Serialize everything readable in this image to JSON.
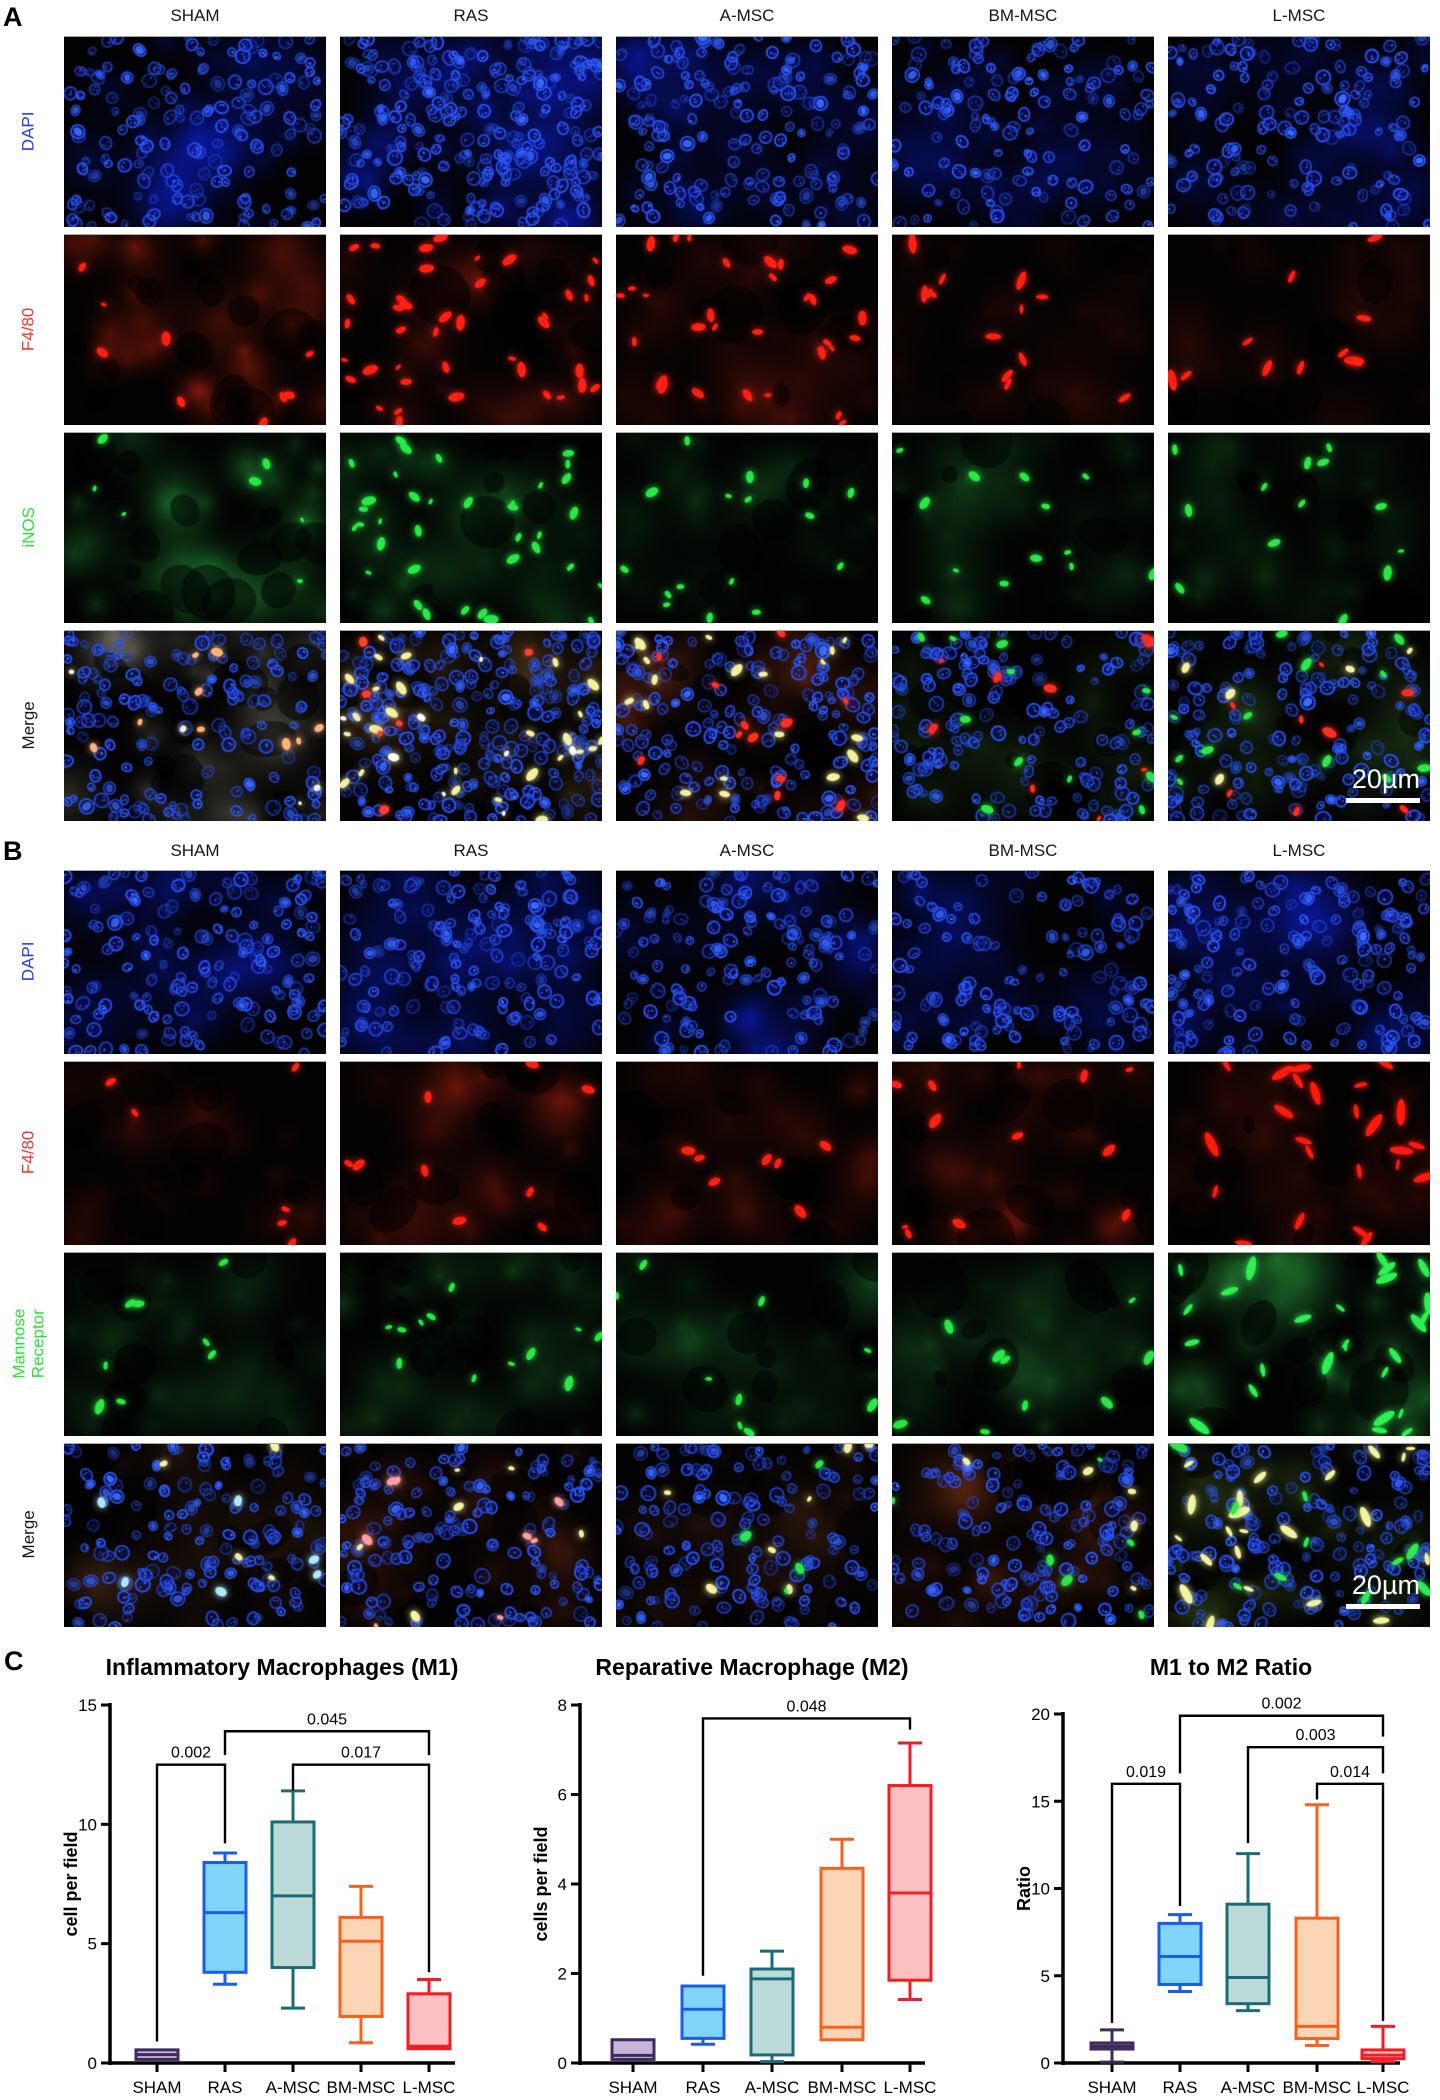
{
  "figure": {
    "panel_a": {
      "label": "A",
      "columns": [
        "SHAM",
        "RAS",
        "A-MSC",
        "BM-MSC",
        "L-MSC"
      ],
      "scale_bar": "20µm",
      "rows": [
        {
          "label": "DAPI",
          "color": "#2340ee",
          "tiles": [
            {
              "n": 150,
              "haze": 0.3
            },
            {
              "n": 235,
              "haze": 0.45
            },
            {
              "n": 160,
              "haze": 0.3
            },
            {
              "n": 125,
              "haze": 0.25
            },
            {
              "n": 140,
              "haze": 0.28
            }
          ]
        },
        {
          "label": "F4/80",
          "color": "#f5372b",
          "tiles": [
            {
              "tex": [
                "#8a1a0a",
                0.5
              ],
              "holes": 14,
              "spots": [
                [
                  "#ff2012",
                  9,
                  1.4
                ]
              ]
            },
            {
              "tex": [
                "#58100a",
                0.35
              ],
              "holes": 8,
              "spots": [
                [
                  "#ff2012",
                  40,
                  1.6
                ]
              ]
            },
            {
              "tex": [
                "#4a0d08",
                0.4
              ],
              "holes": 8,
              "spots": [
                [
                  "#ff2012",
                  32,
                  1.6
                ]
              ]
            },
            {
              "tex": [
                "#330a06",
                0.32
              ],
              "holes": 6,
              "spots": [
                [
                  "#ff2012",
                  13,
                  2.2
                ]
              ]
            },
            {
              "tex": [
                "#380b06",
                0.3
              ],
              "holes": 6,
              "spots": [
                [
                  "#ff2012",
                  11,
                  2.2
                ]
              ]
            }
          ]
        },
        {
          "label": "iNOS",
          "color": "#2ce23a",
          "tiles": [
            {
              "tex": [
                "#1d7a2e",
                0.45
              ],
              "holes": 14,
              "spots": [
                [
                  "#27e845",
                  7,
                  1.3
                ]
              ]
            },
            {
              "tex": [
                "#135c22",
                0.35
              ],
              "holes": 8,
              "spots": [
                [
                  "#27e845",
                  36,
                  1.5
                ]
              ]
            },
            {
              "tex": [
                "#0e3a16",
                0.3
              ],
              "holes": 6,
              "spots": [
                [
                  "#27e845",
                  16,
                  1.4
                ]
              ]
            },
            {
              "tex": [
                "#104218",
                0.32
              ],
              "holes": 6,
              "spots": [
                [
                  "#27e845",
                  13,
                  1.4
                ]
              ]
            },
            {
              "tex": [
                "#104218",
                0.3
              ],
              "holes": 6,
              "spots": [
                [
                  "#27e845",
                  13,
                  1.6
                ]
              ]
            }
          ]
        },
        {
          "label": "Merge",
          "color": "#151515",
          "tiles": [
            {
              "n": 145,
              "tex": [
                "#6b685c",
                0.4
              ],
              "holes": 12,
              "spots": [
                [
                  "#ffb37a",
                  9,
                  1.2
                ],
                [
                  "#f2f5da",
                  4,
                  1
                ]
              ]
            },
            {
              "n": 235,
              "tex": [
                "#4a3418",
                0.38
              ],
              "holes": 8,
              "spots": [
                [
                  "#f4f0a0",
                  26,
                  1.5
                ],
                [
                  "#fffff0",
                  8,
                  1.2
                ],
                [
                  "#ff4030",
                  6,
                  1
                ]
              ]
            },
            {
              "n": 170,
              "tex": [
                "#55200f",
                0.42
              ],
              "holes": 8,
              "spots": [
                [
                  "#f4f0a0",
                  20,
                  1.5
                ],
                [
                  "#ff3020",
                  12,
                  1.3
                ]
              ]
            },
            {
              "n": 150,
              "tex": [
                "#15280f",
                0.42
              ],
              "holes": 8,
              "spots": [
                [
                  "#2ae84a",
                  12,
                  1.4
                ],
                [
                  "#ff3020",
                  10,
                  1.4
                ]
              ]
            },
            {
              "n": 150,
              "tex": [
                "#182e13",
                0.45
              ],
              "holes": 8,
              "spots": [
                [
                  "#2ae84a",
                  12,
                  1.5
                ],
                [
                  "#ff3020",
                  8,
                  1.5
                ],
                [
                  "#f4f0a0",
                  5,
                  1.3
                ]
              ],
              "scalebar": true
            }
          ]
        }
      ]
    },
    "panel_b": {
      "label": "B",
      "columns": [
        "SHAM",
        "RAS",
        "A-MSC",
        "BM-MSC",
        "L-MSC"
      ],
      "scale_bar": "20µm",
      "rows": [
        {
          "label": "DAPI",
          "color": "#2340ee",
          "tiles": [
            {
              "n": 150,
              "haze": 0.3
            },
            {
              "n": 155,
              "haze": 0.32
            },
            {
              "n": 140,
              "haze": 0.28
            },
            {
              "n": 120,
              "haze": 0.25
            },
            {
              "n": 150,
              "haze": 0.3
            }
          ]
        },
        {
          "label": "F4/80",
          "color": "#f5372b",
          "tiles": [
            {
              "tex": [
                "#4a0d06",
                0.3
              ],
              "holes": 8,
              "spots": [
                [
                  "#ff2012",
                  6,
                  1.5
                ]
              ]
            },
            {
              "tex": [
                "#5a1008",
                0.42
              ],
              "holes": 10,
              "spots": [
                [
                  "#ff2012",
                  9,
                  1.5
                ]
              ]
            },
            {
              "tex": [
                "#500e07",
                0.38
              ],
              "holes": 8,
              "spots": [
                [
                  "#ff2012",
                  7,
                  1.5
                ]
              ]
            },
            {
              "tex": [
                "#5a1008",
                0.45
              ],
              "holes": 10,
              "spots": [
                [
                  "#ff2012",
                  12,
                  1.6
                ]
              ]
            },
            {
              "tex": [
                "#440c06",
                0.35
              ],
              "holes": 8,
              "spots": [
                [
                  "#ff1a0d",
                  24,
                  2.6
                ]
              ]
            }
          ]
        },
        {
          "label": "Mannose\nReceptor",
          "color": "#2ce23a",
          "tiles": [
            {
              "tex": [
                "#145020",
                0.32
              ],
              "holes": 8,
              "spots": [
                [
                  "#27e845",
                  8,
                  1.6
                ]
              ]
            },
            {
              "tex": [
                "#165522",
                0.38
              ],
              "holes": 8,
              "spots": [
                [
                  "#27e845",
                  12,
                  1.6
                ]
              ]
            },
            {
              "tex": [
                "#145020",
                0.34
              ],
              "holes": 8,
              "spots": [
                [
                  "#27e845",
                  9,
                  1.6
                ]
              ]
            },
            {
              "tex": [
                "#145020",
                0.36
              ],
              "holes": 8,
              "spots": [
                [
                  "#27e845",
                  9,
                  1.6
                ]
              ]
            },
            {
              "tex": [
                "#1c6b2a",
                0.5
              ],
              "holes": 10,
              "spots": [
                [
                  "#2df052",
                  26,
                  2.4
                ]
              ]
            }
          ]
        },
        {
          "label": "Merge",
          "color": "#151515",
          "tiles": [
            {
              "n": 135,
              "tex": [
                "#2a180e",
                0.4
              ],
              "holes": 8,
              "spots": [
                [
                  "#aee8ff",
                  6,
                  1.2
                ],
                [
                  "#f4f0a0",
                  4,
                  1.2
                ]
              ]
            },
            {
              "n": 140,
              "tex": [
                "#38150a",
                0.48
              ],
              "holes": 8,
              "spots": [
                [
                  "#ff9f9f",
                  8,
                  1.3
                ],
                [
                  "#f4f0a0",
                  6,
                  1.3
                ]
              ]
            },
            {
              "n": 135,
              "tex": [
                "#2a150c",
                0.42
              ],
              "holes": 8,
              "spots": [
                [
                  "#f4f0a0",
                  7,
                  1.3
                ],
                [
                  "#2ae84a",
                  4,
                  1.3
                ]
              ]
            },
            {
              "n": 135,
              "tex": [
                "#381709",
                0.5
              ],
              "holes": 8,
              "spots": [
                [
                  "#2ae84a",
                  6,
                  1.3
                ],
                [
                  "#f4f0a0",
                  5,
                  1.3
                ]
              ]
            },
            {
              "n": 145,
              "tex": [
                "#22300f",
                0.5
              ],
              "holes": 8,
              "spots": [
                [
                  "#f2f5a0",
                  22,
                  2.2
                ],
                [
                  "#31e852",
                  10,
                  2.0
                ]
              ],
              "scalebar": true
            }
          ]
        }
      ]
    },
    "panel_c": {
      "label": "C"
    }
  },
  "group_colors": {
    "SHAM": {
      "edge": "#3d2b5e",
      "fill": "#c7b6da"
    },
    "RAS": {
      "edge": "#1b5ce8",
      "fill": "#7fd4f8"
    },
    "A-MSC": {
      "edge": "#1a6b77",
      "fill": "#bcdbd8"
    },
    "BM-MSC": {
      "edge": "#f8611c",
      "fill": "#fbd5b5"
    },
    "L-MSC": {
      "edge": "#f01e24",
      "fill": "#fbc1c1"
    }
  },
  "chart_data": [
    {
      "type": "box",
      "title": "Inflammatory Macrophages (M1)",
      "ylabel": "cell per field",
      "ylim": [
        0,
        15
      ],
      "yticks": [
        0,
        5,
        10,
        15
      ],
      "categories": [
        "SHAM",
        "RAS",
        "A-MSC",
        "BM-MSC",
        "L-MSC"
      ],
      "boxes": [
        {
          "group": "SHAM",
          "min": 0.05,
          "q1": 0.15,
          "median": 0.35,
          "q3": 0.55,
          "max": 0.6
        },
        {
          "group": "RAS",
          "min": 3.3,
          "q1": 3.8,
          "median": 6.3,
          "q3": 8.4,
          "max": 8.8
        },
        {
          "group": "A-MSC",
          "min": 2.3,
          "q1": 4.0,
          "median": 7.0,
          "q3": 10.1,
          "max": 11.4
        },
        {
          "group": "BM-MSC",
          "min": 0.85,
          "q1": 1.95,
          "median": 5.1,
          "q3": 6.1,
          "max": 7.4
        },
        {
          "group": "L-MSC",
          "min": 0.6,
          "q1": 0.6,
          "median": 0.7,
          "q3": 2.9,
          "max": 3.5
        }
      ],
      "significance": [
        {
          "label": "0.002",
          "i1": 0,
          "i2": 1,
          "y": 12.5,
          "d1": 0.9,
          "d2": 9.2
        },
        {
          "label": "0.017",
          "i1": 2,
          "i2": 4,
          "y": 12.5,
          "d1": 11.4,
          "d2": 3.8
        },
        {
          "label": "0.045",
          "i1": 1,
          "i2": 4,
          "y": 13.9,
          "d1": 12.9,
          "d2": 12.9
        }
      ]
    },
    {
      "type": "box",
      "title": "Reparative Macrophage (M2)",
      "ylabel": "cells per field",
      "ylim": [
        0,
        8
      ],
      "yticks": [
        0,
        2,
        4,
        6,
        8
      ],
      "categories": [
        "SHAM",
        "RAS",
        "A-MSC",
        "BM-MSC",
        "L-MSC"
      ],
      "boxes": [
        {
          "group": "SHAM",
          "min": 0.03,
          "q1": 0.08,
          "median": 0.17,
          "q3": 0.52,
          "max": 0.63
        },
        {
          "group": "RAS",
          "min": 0.42,
          "q1": 0.55,
          "median": 1.2,
          "q3": 1.72,
          "max": 1.78
        },
        {
          "group": "A-MSC",
          "min": 0.03,
          "q1": 0.18,
          "median": 1.88,
          "q3": 2.1,
          "max": 2.5
        },
        {
          "group": "BM-MSC",
          "min": 0.42,
          "q1": 0.52,
          "median": 0.8,
          "q3": 4.35,
          "max": 5.0
        },
        {
          "group": "L-MSC",
          "min": 1.42,
          "q1": 1.85,
          "median": 3.8,
          "q3": 6.2,
          "max": 7.15
        }
      ],
      "significance": [
        {
          "label": "0.048",
          "i1": 1,
          "i2": 4,
          "y": 7.7,
          "d1": 1.95,
          "d2": 7.45
        }
      ]
    },
    {
      "type": "box",
      "title": "M1 to M2 Ratio",
      "ylabel": "Ratio",
      "ylim": [
        0,
        20
      ],
      "yticks": [
        0,
        5,
        10,
        15,
        20
      ],
      "categories": [
        "SHAM",
        "RAS",
        "A-MSC",
        "BM-MSC",
        "L-MSC"
      ],
      "boxes": [
        {
          "group": "SHAM",
          "min": 0.05,
          "q1": 0.8,
          "median": 0.97,
          "q3": 1.15,
          "max": 1.9
        },
        {
          "group": "RAS",
          "min": 4.1,
          "q1": 4.5,
          "median": 6.1,
          "q3": 8.0,
          "max": 8.5
        },
        {
          "group": "A-MSC",
          "min": 3.0,
          "q1": 3.4,
          "median": 4.9,
          "q3": 9.1,
          "max": 12.0
        },
        {
          "group": "BM-MSC",
          "min": 1.0,
          "q1": 1.4,
          "median": 2.1,
          "q3": 8.3,
          "max": 14.8
        },
        {
          "group": "L-MSC",
          "min": 0.08,
          "q1": 0.25,
          "median": 0.45,
          "q3": 0.75,
          "max": 2.1
        }
      ],
      "significance": [
        {
          "label": "0.019",
          "i1": 0,
          "i2": 1,
          "y": 16.0,
          "d1": 2.3,
          "d2": 9.0
        },
        {
          "label": "0.014",
          "i1": 3,
          "i2": 4,
          "y": 16.0,
          "d1": 15.1,
          "d2": 2.4
        },
        {
          "label": "0.003",
          "i1": 2,
          "i2": 4,
          "y": 18.1,
          "d1": 12.6,
          "d2": 16.6
        },
        {
          "label": "0.002",
          "i1": 1,
          "i2": 4,
          "y": 19.9,
          "d1": 16.6,
          "d2": 18.7
        }
      ]
    }
  ]
}
